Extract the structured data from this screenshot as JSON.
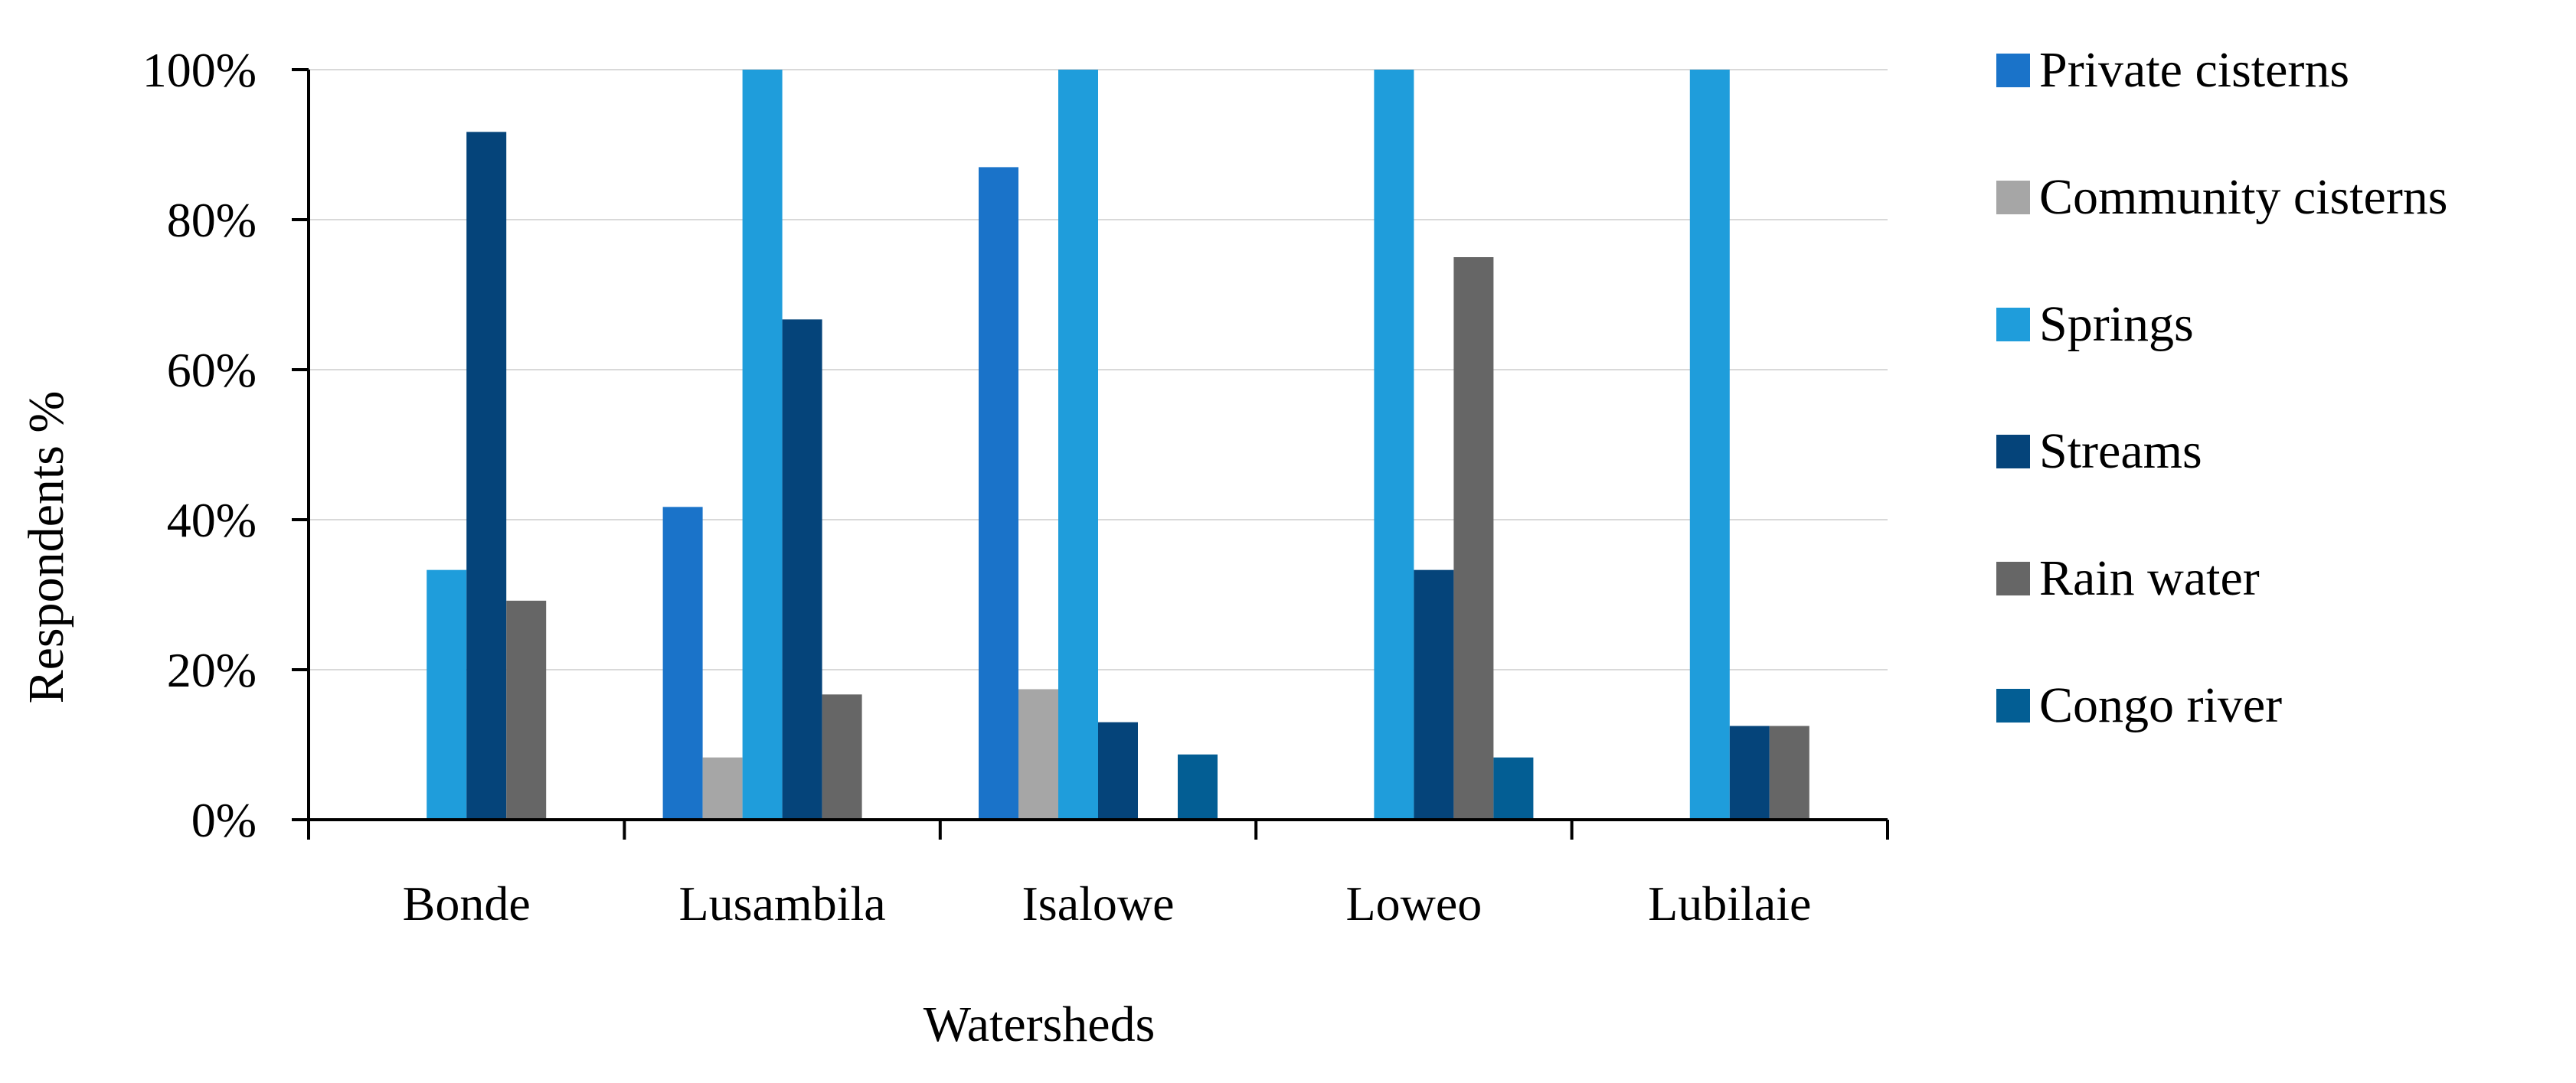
{
  "chart_data": {
    "type": "bar",
    "title": "",
    "xlabel": "Watersheds",
    "ylabel": "Respondents %",
    "ylim": [
      0,
      100
    ],
    "y_ticks": [
      "0%",
      "20%",
      "40%",
      "60%",
      "80%",
      "100%"
    ],
    "grid": true,
    "legend_position": "right",
    "categories": [
      "Bonde",
      "Lusambila",
      "Isalowe",
      "Loweo",
      "Lubilaie"
    ],
    "series": [
      {
        "name": "Private cisterns",
        "color": "#1a73c9",
        "values": [
          0,
          41.7,
          87,
          0,
          0
        ]
      },
      {
        "name": "Community cisterns",
        "color": "#a6a6a6",
        "values": [
          0,
          8.3,
          17.4,
          0,
          0
        ]
      },
      {
        "name": "Springs",
        "color": "#1f9ddb",
        "values": [
          33.3,
          100,
          100,
          100,
          100
        ]
      },
      {
        "name": "Streams",
        "color": "#05447a",
        "values": [
          91.7,
          66.7,
          13,
          33.3,
          12.5
        ]
      },
      {
        "name": "Rain water",
        "color": "#666666",
        "values": [
          29.2,
          16.7,
          0,
          75,
          12.5
        ]
      },
      {
        "name": "Congo river",
        "color": "#035e94",
        "values": [
          0,
          0,
          8.7,
          8.3,
          0
        ]
      }
    ]
  }
}
